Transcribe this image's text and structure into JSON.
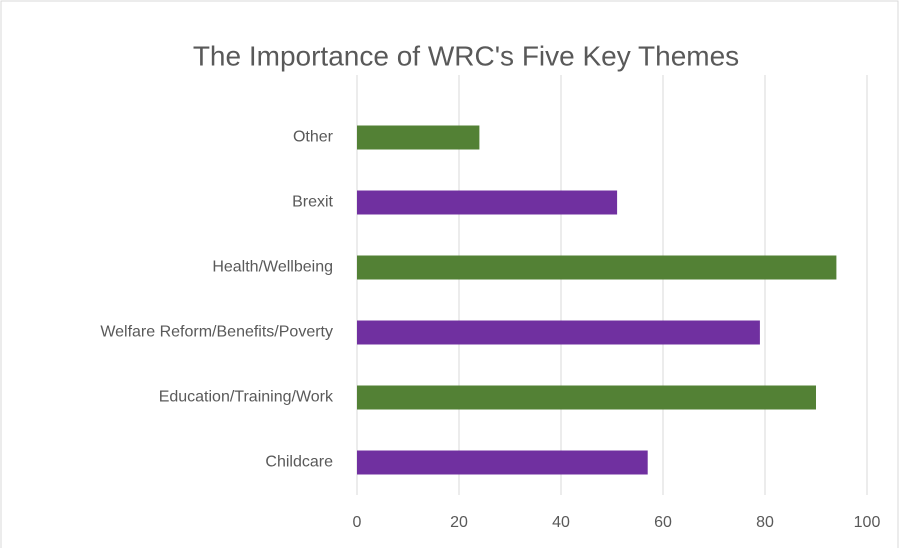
{
  "chart_data": {
    "type": "bar",
    "orientation": "horizontal",
    "title": "The Importance of WRC's Five Key Themes",
    "categories": [
      "Other",
      "Brexit",
      "Health/Wellbeing",
      "Welfare Reform/Benefits/Poverty",
      "Education/Training/Work",
      "Childcare"
    ],
    "values": [
      24,
      51,
      94,
      79,
      90,
      57
    ],
    "colors": [
      "#538135",
      "#7030a0",
      "#538135",
      "#7030a0",
      "#538135",
      "#7030a0"
    ],
    "xlim": [
      0,
      100
    ],
    "xticks": [
      0,
      20,
      40,
      60,
      80,
      100
    ],
    "grid": true
  }
}
